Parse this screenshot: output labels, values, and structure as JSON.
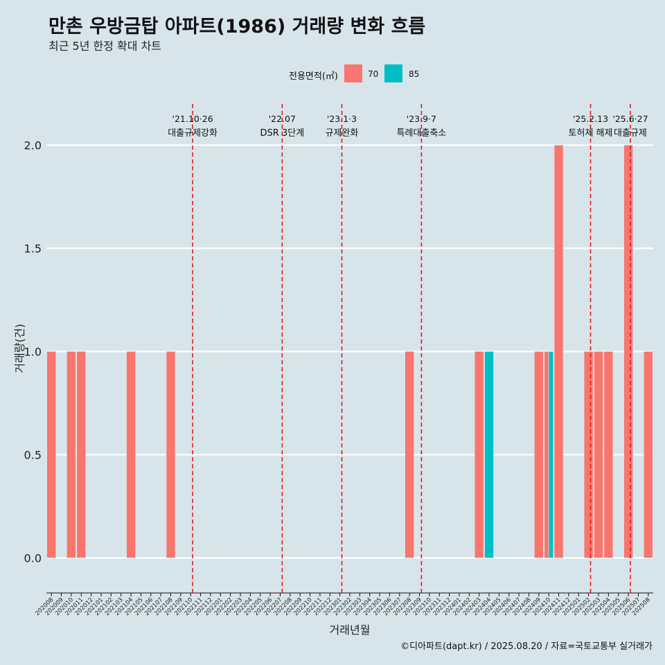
{
  "title": "만촌 우방금탑 아파트(1986) 거래량 변화 흐름",
  "subtitle": "최근 5년 한정 확대 차트",
  "footer": "©디아파트(dapt.kr) / 2025.08.20 / 자료=국토교통부 실거래가",
  "legend": {
    "title": "전용면적(㎡)",
    "items": [
      {
        "label": "70",
        "color": "#f8766d"
      },
      {
        "label": "85",
        "color": "#00bfc4"
      }
    ]
  },
  "chart_data": {
    "type": "bar",
    "xlabel": "거래년월",
    "ylabel": "거래량(건)",
    "ylim": [
      -0.17,
      2.2
    ],
    "yticks": [
      "0.0",
      "0.5",
      "1.0",
      "1.5",
      "2.0"
    ],
    "grid": true,
    "legend_position": "top",
    "categories": [
      "202008",
      "202009",
      "202010",
      "202011",
      "202012",
      "202101",
      "202102",
      "202103",
      "202104",
      "202105",
      "202106",
      "202107",
      "202108",
      "202109",
      "202110",
      "202111",
      "202112",
      "202201",
      "202202",
      "202203",
      "202204",
      "202205",
      "202206",
      "202207",
      "202208",
      "202209",
      "202210",
      "202211",
      "202212",
      "202301",
      "202302",
      "202303",
      "202304",
      "202305",
      "202306",
      "202307",
      "202308",
      "202309",
      "202310",
      "202311",
      "202312",
      "202401",
      "202402",
      "202403",
      "202404",
      "202405",
      "202406",
      "202407",
      "202408",
      "202409",
      "202410",
      "202411",
      "202412",
      "202501",
      "202502",
      "202503",
      "202504",
      "202505",
      "202506",
      "202507",
      "202508"
    ],
    "series": [
      {
        "name": "70",
        "color": "#f8766d",
        "values": [
          {
            "x": "202008",
            "y": 1
          },
          {
            "x": "202010",
            "y": 1
          },
          {
            "x": "202011",
            "y": 1
          },
          {
            "x": "202104",
            "y": 1
          },
          {
            "x": "202108",
            "y": 1
          },
          {
            "x": "202308",
            "y": 1
          },
          {
            "x": "202403",
            "y": 1
          },
          {
            "x": "202409",
            "y": 1
          },
          {
            "x": "202410",
            "y": 1
          },
          {
            "x": "202411",
            "y": 2
          },
          {
            "x": "202502",
            "y": 1
          },
          {
            "x": "202503",
            "y": 1
          },
          {
            "x": "202504",
            "y": 1
          },
          {
            "x": "202506",
            "y": 2
          },
          {
            "x": "202508",
            "y": 1
          }
        ]
      },
      {
        "name": "85",
        "color": "#00bfc4",
        "values": [
          {
            "x": "202404",
            "y": 1
          },
          {
            "x": "202410",
            "y": 1
          }
        ]
      }
    ],
    "annotations": [
      {
        "x": 14.2,
        "date": "'21.10·26",
        "label": "대출규제강화"
      },
      {
        "x": 23.2,
        "date": "'22.07",
        "label": "DSR 3단계"
      },
      {
        "x": 29.2,
        "date": "'23.1·3",
        "label": "규제완화"
      },
      {
        "x": 37.2,
        "date": "'23.9·7",
        "label": "특례대출축소"
      },
      {
        "x": 54.2,
        "date": "'25.2.13",
        "label": "토허제 해제"
      },
      {
        "x": 58.2,
        "date": "'25.6·27",
        "label": "대출규제"
      }
    ],
    "annotation_color": "#e41a1c"
  }
}
